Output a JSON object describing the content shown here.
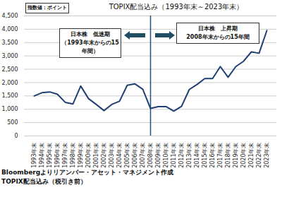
{
  "chart_data": {
    "type": "line",
    "title": "TOPIX配当込み（1993年末～2023年末）",
    "ylabel": "指数値：ポイント",
    "categories": [
      "1993年末",
      "1994年末",
      "1995年末",
      "1996年末",
      "1997年末",
      "1998年末",
      "1999年末",
      "2000年末",
      "2001年末",
      "2002年末",
      "2003年末",
      "2004年末",
      "2005年末",
      "2006年末",
      "2007年末",
      "2008年末",
      "2009年末",
      "2010年末",
      "2011年末",
      "2012年末",
      "2013年末",
      "2014年末",
      "2015年末",
      "2016年末",
      "2017年末",
      "2018年末",
      "2019年末",
      "2020年末",
      "2021年末",
      "2022年末",
      "2023年末"
    ],
    "values": [
      1500,
      1620,
      1650,
      1560,
      1260,
      1200,
      1870,
      1400,
      1180,
      950,
      1180,
      1300,
      1900,
      1950,
      1750,
      1030,
      1100,
      1100,
      930,
      1110,
      1740,
      1930,
      2150,
      2150,
      2600,
      2200,
      2600,
      2800,
      3150,
      3100,
      3950
    ],
    "color": "#1f3f73",
    "ylim": [
      0,
      4500
    ],
    "yticks": [
      0,
      500,
      1000,
      1500,
      2000,
      2500,
      3000,
      3500,
      4000,
      4500
    ],
    "grid": true,
    "divider": "2008年末",
    "annotations": [
      {
        "lines": [
          "日本株　低迷期",
          "（1993年末からの15年間）"
        ]
      },
      {
        "lines": [
          "日本株　上昇期",
          "2008年末からの15年間"
        ]
      }
    ],
    "source": "Bloombergよりリアンバー・アセット・マネジメント作成",
    "note": "TOPIX配当込み（税引き前）"
  }
}
